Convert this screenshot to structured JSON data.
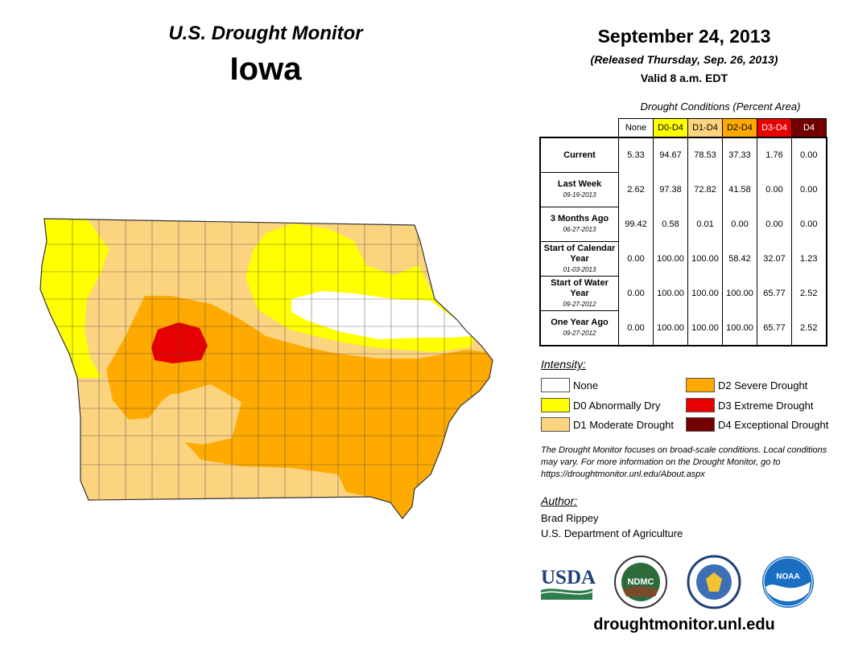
{
  "header": {
    "title": "U.S. Drought Monitor",
    "region": "Iowa",
    "date": "September 24, 2013",
    "released": "(Released Thursday, Sep. 26, 2013)",
    "valid": "Valid 8 a.m. EDT"
  },
  "conditions": {
    "title": "Drought Conditions (Percent Area)",
    "columns": [
      {
        "label": "None",
        "color": "#ffffff",
        "text_color": "#000000"
      },
      {
        "label": "D0-D4",
        "color": "#ffff00",
        "text_color": "#000000"
      },
      {
        "label": "D1-D4",
        "color": "#fcd37f",
        "text_color": "#000000"
      },
      {
        "label": "D2-D4",
        "color": "#ffaa00",
        "text_color": "#000000"
      },
      {
        "label": "D3-D4",
        "color": "#e60000",
        "text_color": "#ffffff"
      },
      {
        "label": "D4",
        "color": "#730000",
        "text_color": "#ffffff"
      }
    ],
    "rows": [
      {
        "label": "Current",
        "sub": "",
        "values": [
          "5.33",
          "94.67",
          "78.53",
          "37.33",
          "1.76",
          "0.00"
        ]
      },
      {
        "label": "Last Week",
        "sub": "09-19-2013",
        "values": [
          "2.62",
          "97.38",
          "72.82",
          "41.58",
          "0.00",
          "0.00"
        ]
      },
      {
        "label": "3 Months Ago",
        "sub": "06-27-2013",
        "values": [
          "99.42",
          "0.58",
          "0.01",
          "0.00",
          "0.00",
          "0.00"
        ]
      },
      {
        "label": "Start of Calendar Year",
        "sub": "01-03-2013",
        "values": [
          "0.00",
          "100.00",
          "100.00",
          "58.42",
          "32.07",
          "1.23"
        ]
      },
      {
        "label": "Start of Water Year",
        "sub": "09-27-2012",
        "values": [
          "0.00",
          "100.00",
          "100.00",
          "100.00",
          "65.77",
          "2.52"
        ]
      },
      {
        "label": "One Year Ago",
        "sub": "09-27-2012",
        "values": [
          "0.00",
          "100.00",
          "100.00",
          "100.00",
          "65.77",
          "2.52"
        ]
      }
    ]
  },
  "legend": {
    "title": "Intensity:",
    "items": [
      {
        "label": "None",
        "color": "#ffffff"
      },
      {
        "label": "D0 Abnormally Dry",
        "color": "#ffff00"
      },
      {
        "label": "D1 Moderate Drought",
        "color": "#fcd37f"
      },
      {
        "label": "D2 Severe Drought",
        "color": "#ffaa00"
      },
      {
        "label": "D3 Extreme Drought",
        "color": "#e60000"
      },
      {
        "label": "D4 Exceptional Drought",
        "color": "#730000"
      }
    ]
  },
  "note": "The Drought Monitor focuses on broad-scale conditions. Local conditions may vary. For more information on the Drought Monitor, go to https://droughtmonitor.unl.edu/About.aspx",
  "author": {
    "title": "Author:",
    "name": "Brad Rippey",
    "org": "U.S. Department of Agriculture"
  },
  "logos": {
    "usda": "USDA",
    "ndmc": "NDMC",
    "noaa": "NOAA",
    "doc_icon": "department-of-commerce-seal-icon"
  },
  "website": "droughtmonitor.unl.edu"
}
